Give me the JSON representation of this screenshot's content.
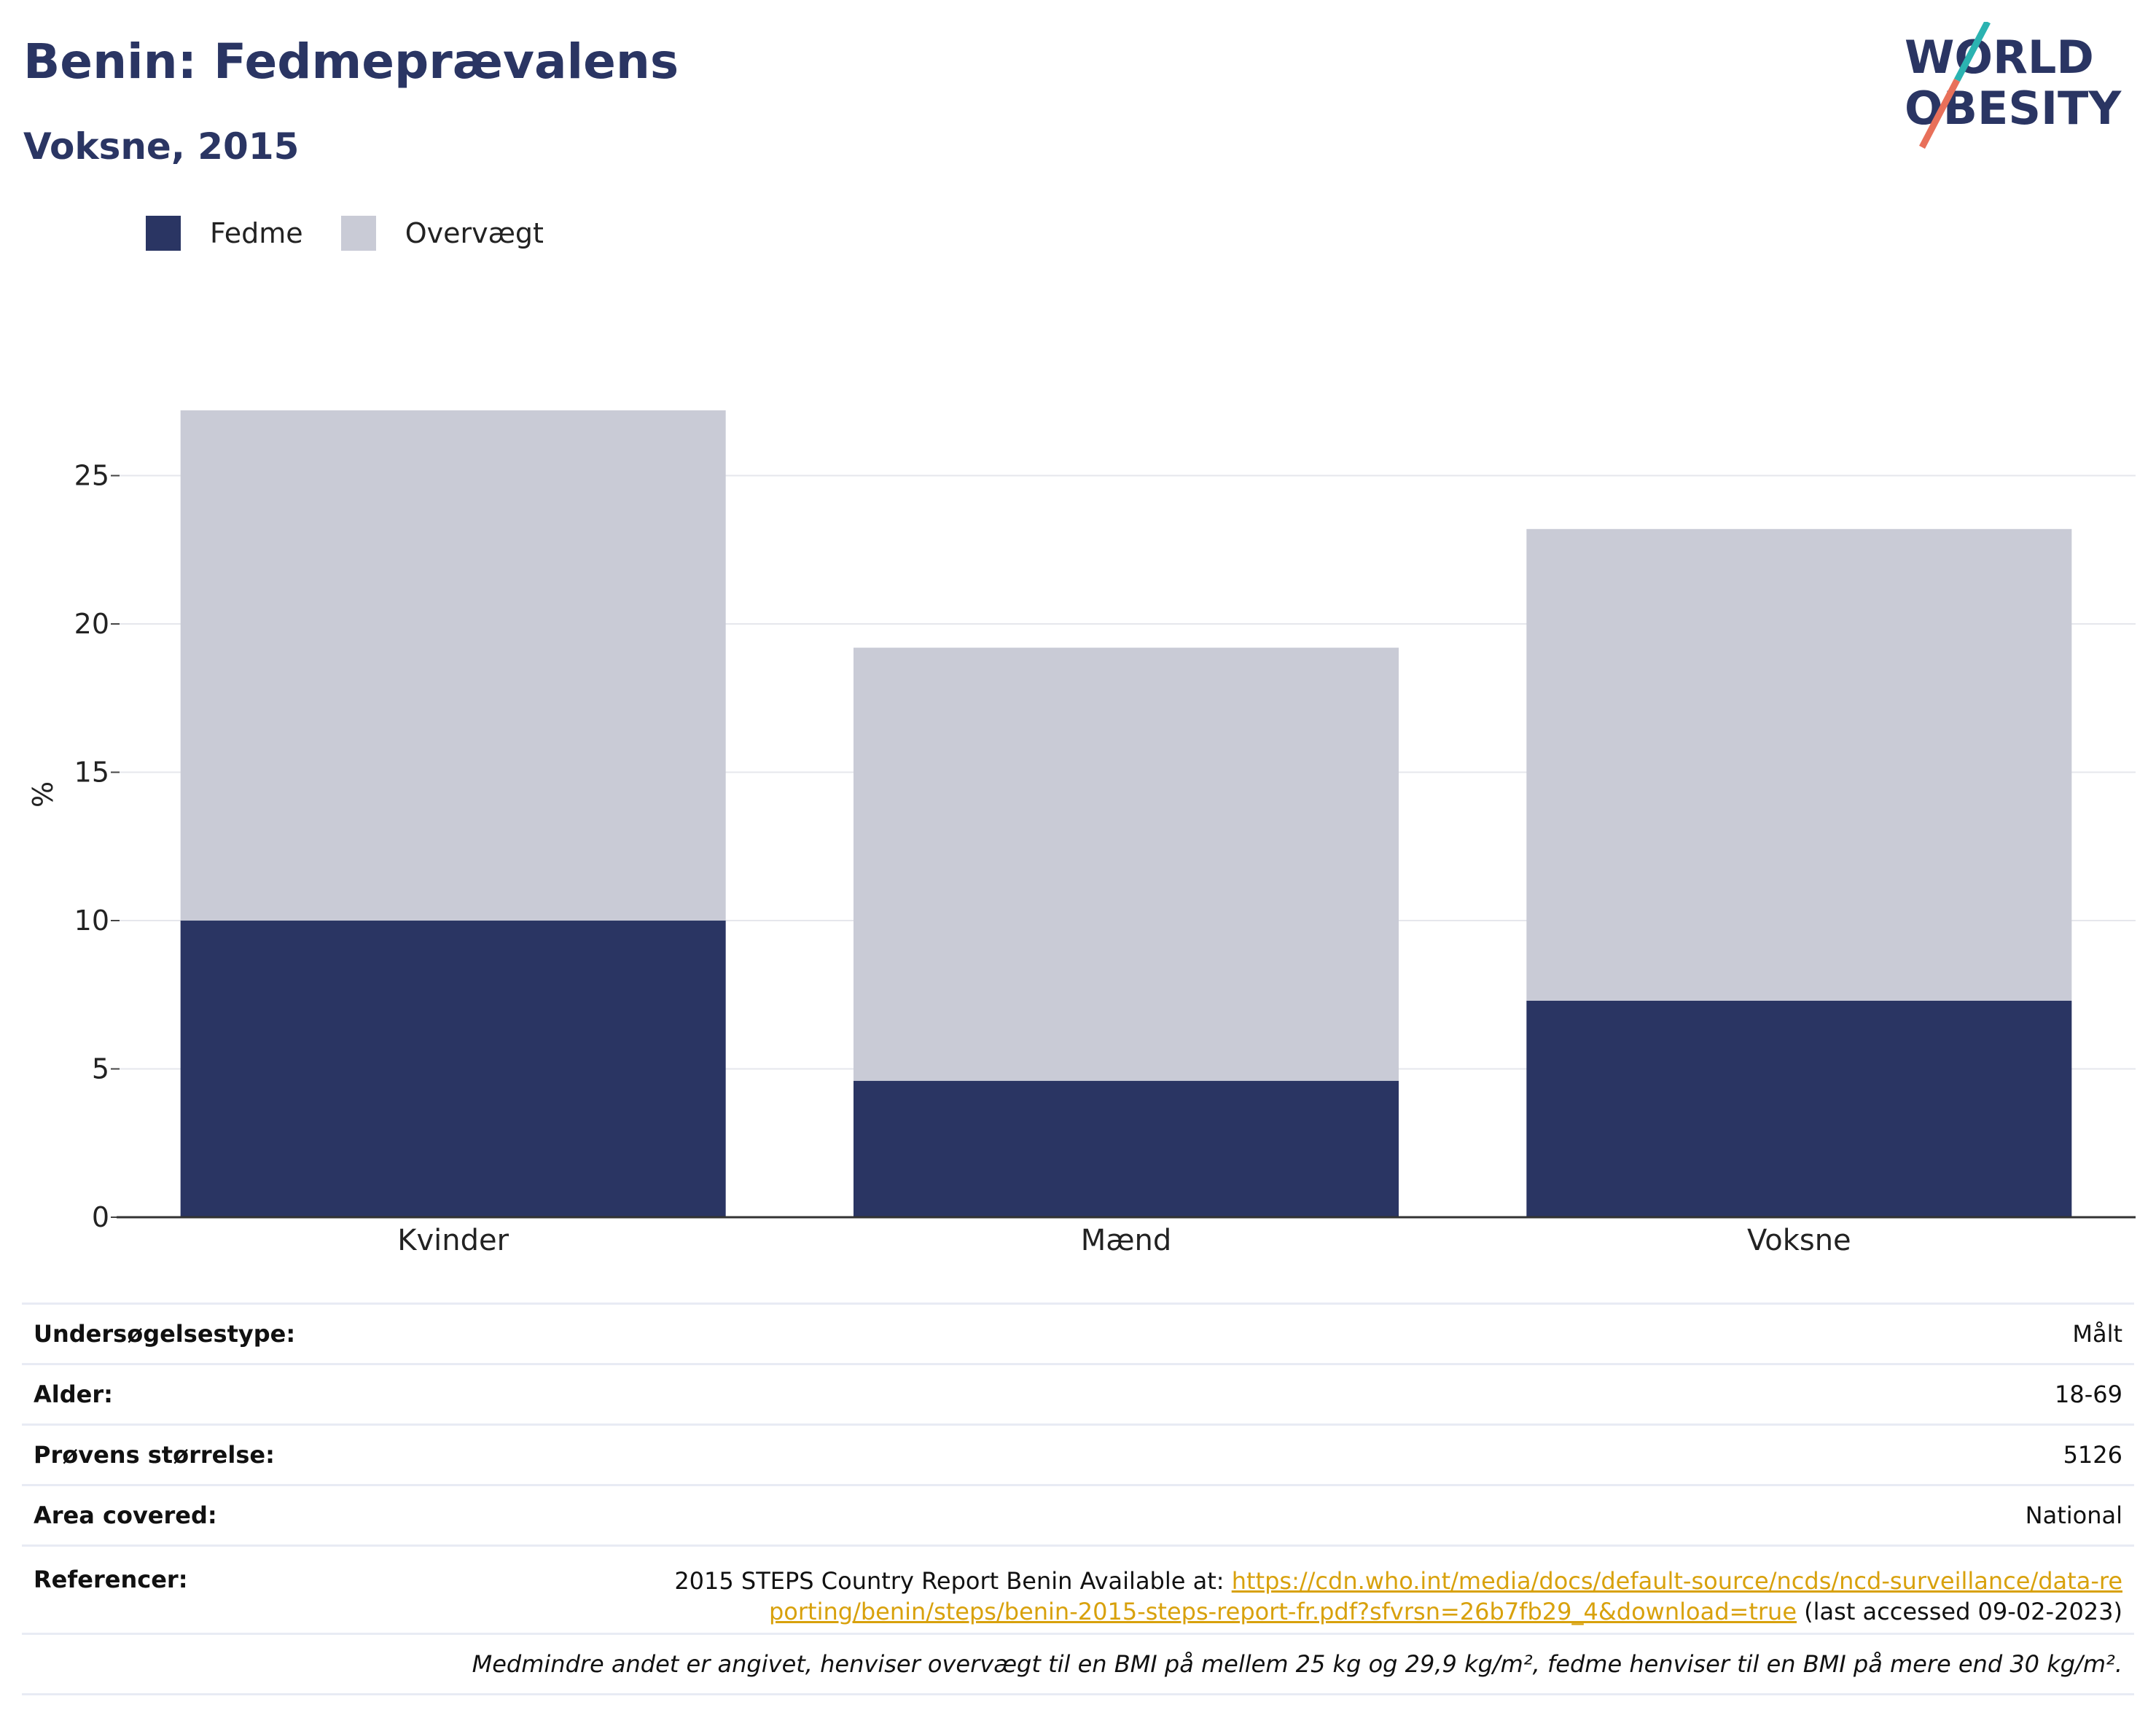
{
  "header": {
    "title": "Benin: Fedmeprævalens",
    "subtitle": "Voksne, 2015"
  },
  "logo": {
    "line1": "WORLD",
    "line2": "OBESITY",
    "colors": {
      "text": "#2a3563",
      "slash_teal": "#2bb3b1",
      "slash_red": "#e8705a"
    }
  },
  "legend": [
    {
      "label": "Fedme",
      "color": "#2a3563"
    },
    {
      "label": "Overvægt",
      "color": "#c9cbd6"
    }
  ],
  "chart_data": {
    "type": "bar",
    "stacked": true,
    "categories": [
      "Kvinder",
      "Mænd",
      "Voksne"
    ],
    "series": [
      {
        "name": "Fedme",
        "values": [
          10.0,
          4.6,
          7.3
        ],
        "color": "#2a3563"
      },
      {
        "name": "Overvægt",
        "values": [
          17.2,
          14.6,
          15.9
        ],
        "color": "#c9cbd6"
      }
    ],
    "ylabel": "%",
    "ylim": [
      0,
      27.2
    ],
    "yticks": [
      0,
      5,
      10,
      15,
      20,
      25
    ],
    "grid": true,
    "legend_position": "top-left"
  },
  "info_table": {
    "rows": [
      {
        "key": "Undersøgelsestype:",
        "value": "Målt"
      },
      {
        "key": "Alder:",
        "value": "18-69"
      },
      {
        "key": "Prøvens størrelse:",
        "value": "5126"
      },
      {
        "key": "Area covered:",
        "value": "National"
      }
    ],
    "reference": {
      "key": "Referencer:",
      "prefix": "2015 STEPS Country Report Benin Available at: ",
      "link": "https://cdn.who.int/media/docs/default-source/ncds/ncd-surveillance/data-reporting/benin/steps/benin-2015-steps-report-fr.pdf?sfvrsn=26b7fb29_4&download=true",
      "suffix": " (last accessed 09-02-2023)"
    },
    "note": "Medmindre andet er angivet, henviser overvægt til en BMI på mellem 25 kg og 29,9 kg/m², fedme henviser til en BMI på mere end 30 kg/m²."
  }
}
